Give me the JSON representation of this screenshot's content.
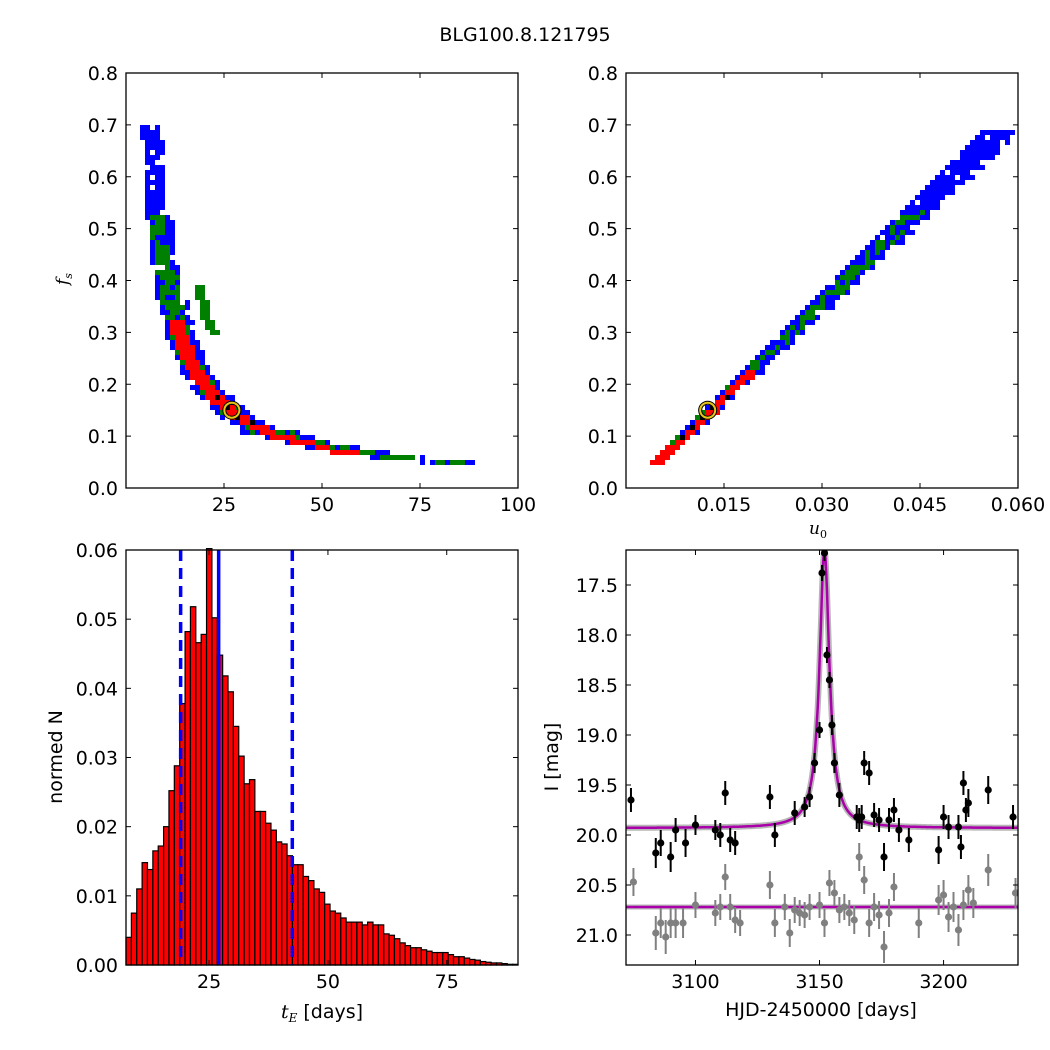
{
  "figure": {
    "title": "BLG100.8.121795"
  },
  "chart_data": [
    {
      "type": "heatmap",
      "panel": "fs_vs_tE",
      "xlabel": "",
      "ylabel": "f_s",
      "xlim": [
        0,
        100
      ],
      "ylim": [
        0.0,
        0.8
      ],
      "xticks": [
        25,
        50,
        75,
        100
      ],
      "yticks": [
        0.0,
        0.1,
        0.2,
        0.3,
        0.4,
        0.5,
        0.6,
        0.7,
        0.8
      ],
      "colors": {
        "outer": "#0000ff",
        "middle": "#008000",
        "inner": "#ff0000",
        "best": "#000000"
      },
      "best_fit": {
        "tE": 27.0,
        "fs": 0.15
      },
      "relation": "fs ≈ 4.05 / tE (degenerate band from tE≈10, fs≈0.7 to tE≈90, fs≈0.05)"
    },
    {
      "type": "heatmap",
      "panel": "fs_vs_u0",
      "xlabel": "u_0",
      "ylabel": "",
      "xlim": [
        0.0,
        0.06
      ],
      "ylim": [
        0.0,
        0.8
      ],
      "xticks": [
        0.015,
        0.03,
        0.045,
        0.06
      ],
      "xtick_labels": [
        "0.015",
        "0.030",
        "0.045",
        "0.060"
      ],
      "yticks": [
        0.0,
        0.1,
        0.2,
        0.3,
        0.4,
        0.5,
        0.6,
        0.7,
        0.8
      ],
      "colors": {
        "outer": "#0000ff",
        "middle": "#008000",
        "inner": "#ff0000",
        "best": "#000000"
      },
      "best_fit": {
        "u0": 0.0125,
        "fs": 0.15
      },
      "relation": "fs ≈ 12.1·u0 (band from u0≈0.004, fs≈0.05 to u0≈0.056, fs≈0.69)"
    },
    {
      "type": "bar",
      "panel": "tE_histogram",
      "xlabel": "t_E [days]",
      "ylabel": "normed N",
      "xlim": [
        7.5,
        90
      ],
      "ylim": [
        0.0,
        0.06
      ],
      "xticks": [
        25,
        50,
        75
      ],
      "yticks": [
        0.0,
        0.01,
        0.02,
        0.03,
        0.04,
        0.05,
        0.06
      ],
      "ytick_labels": [
        "0.00",
        "0.01",
        "0.02",
        "0.03",
        "0.04",
        "0.05",
        "0.06"
      ],
      "bar_color": "#ff0000",
      "bin_start": 7.5,
      "bin_width": 1.13,
      "values": [
        0.004,
        0.0075,
        0.011,
        0.0148,
        0.0138,
        0.0165,
        0.0172,
        0.02,
        0.0252,
        0.0288,
        0.0378,
        0.0482,
        0.0518,
        0.0466,
        0.0478,
        0.0602,
        0.0502,
        0.0448,
        0.0418,
        0.0395,
        0.0345,
        0.0302,
        0.0262,
        0.0268,
        0.0222,
        0.0222,
        0.0205,
        0.0195,
        0.0178,
        0.0175,
        0.0158,
        0.0145,
        0.0145,
        0.0128,
        0.0122,
        0.011,
        0.0105,
        0.0088,
        0.0078,
        0.0075,
        0.0068,
        0.0062,
        0.0062,
        0.0062,
        0.0058,
        0.0062,
        0.0058,
        0.0058,
        0.0045,
        0.0043,
        0.0038,
        0.0032,
        0.0028,
        0.0025,
        0.0025,
        0.0022,
        0.002,
        0.0018,
        0.0018,
        0.0018,
        0.0015,
        0.0012,
        0.0012,
        0.001,
        0.0008,
        0.0007,
        0.0005,
        0.0004,
        0.0003,
        0.0003,
        0.0002,
        0.0001,
        0.0001
      ],
      "median_line": 27.0,
      "dashed_lines": [
        19.0,
        42.5
      ],
      "line_color": "#0000ff"
    },
    {
      "type": "scatter",
      "panel": "light_curve",
      "xlabel": "HJD-2450000 [days]",
      "ylabel": "I [mag]",
      "xlim": [
        3072,
        3230
      ],
      "ylim": [
        21.3,
        17.15
      ],
      "y_inverted": true,
      "xticks": [
        3100,
        3150,
        3200
      ],
      "yticks": [
        17.5,
        18.0,
        18.5,
        19.0,
        19.5,
        20.0,
        20.5,
        21.0
      ],
      "model": {
        "t0": 3152.0,
        "baseline": 19.93,
        "peak": 17.15,
        "width": 2.4,
        "color": "#aa00aa",
        "band_color": "#999999"
      },
      "flat_model": {
        "level": 20.72,
        "color": "#aa00aa"
      },
      "series": [
        {
          "color": "#000000",
          "x": [
            3074,
            3084,
            3086,
            3090,
            3092,
            3096,
            3100,
            3108,
            3110,
            3112,
            3114,
            3116,
            3130,
            3132,
            3140,
            3144,
            3146,
            3148,
            3150,
            3151,
            3152,
            3153,
            3154,
            3155,
            3156,
            3158,
            3165,
            3166,
            3167,
            3168,
            3170,
            3172,
            3174,
            3176,
            3178,
            3180,
            3182,
            3186,
            3198,
            3200,
            3202,
            3206,
            3207,
            3208,
            3209,
            3210,
            3218,
            3228
          ],
          "y": [
            19.65,
            20.18,
            20.08,
            20.22,
            19.95,
            20.08,
            19.9,
            19.95,
            20.0,
            19.58,
            20.05,
            20.08,
            19.62,
            20.0,
            19.78,
            19.72,
            19.62,
            19.28,
            18.95,
            17.38,
            17.18,
            18.2,
            18.45,
            18.9,
            19.28,
            19.6,
            19.82,
            19.85,
            19.82,
            19.28,
            19.38,
            19.8,
            19.85,
            20.22,
            19.85,
            19.75,
            19.95,
            20.05,
            20.15,
            19.82,
            19.92,
            19.92,
            20.12,
            19.48,
            19.75,
            19.68,
            19.55,
            19.82
          ],
          "err": [
            0.12,
            0.15,
            0.13,
            0.15,
            0.12,
            0.14,
            0.1,
            0.1,
            0.12,
            0.12,
            0.12,
            0.12,
            0.12,
            0.12,
            0.12,
            0.1,
            0.1,
            0.1,
            0.08,
            0.08,
            0.08,
            0.08,
            0.08,
            0.1,
            0.1,
            0.12,
            0.12,
            0.12,
            0.12,
            0.12,
            0.12,
            0.12,
            0.12,
            0.14,
            0.12,
            0.12,
            0.12,
            0.12,
            0.14,
            0.12,
            0.12,
            0.12,
            0.12,
            0.12,
            0.12,
            0.14,
            0.14,
            0.12
          ]
        },
        {
          "color": "#808080",
          "x": [
            3075,
            3084,
            3086,
            3088,
            3090,
            3092,
            3095,
            3100,
            3108,
            3110,
            3112,
            3114,
            3116,
            3118,
            3130,
            3132,
            3136,
            3138,
            3140,
            3142,
            3144,
            3146,
            3150,
            3152,
            3154,
            3156,
            3158,
            3160,
            3162,
            3164,
            3166,
            3168,
            3170,
            3172,
            3174,
            3176,
            3178,
            3180,
            3190,
            3198,
            3200,
            3202,
            3204,
            3206,
            3208,
            3210,
            3212,
            3218,
            3229
          ],
          "y": [
            20.47,
            20.98,
            20.88,
            21.02,
            20.88,
            20.88,
            20.88,
            20.7,
            20.78,
            20.72,
            20.42,
            20.72,
            20.85,
            20.88,
            20.5,
            20.88,
            20.72,
            20.98,
            20.75,
            20.78,
            20.8,
            20.72,
            20.7,
            20.88,
            20.48,
            20.58,
            20.75,
            20.72,
            20.78,
            20.85,
            20.22,
            20.45,
            20.88,
            20.72,
            20.8,
            21.12,
            20.78,
            20.52,
            20.88,
            20.65,
            20.6,
            20.82,
            20.72,
            20.95,
            20.7,
            20.55,
            20.68,
            20.35,
            20.58
          ],
          "err": [
            0.14,
            0.17,
            0.15,
            0.17,
            0.15,
            0.15,
            0.15,
            0.13,
            0.13,
            0.13,
            0.13,
            0.13,
            0.13,
            0.13,
            0.14,
            0.14,
            0.13,
            0.14,
            0.13,
            0.13,
            0.13,
            0.13,
            0.13,
            0.14,
            0.13,
            0.13,
            0.13,
            0.13,
            0.13,
            0.14,
            0.14,
            0.14,
            0.14,
            0.14,
            0.14,
            0.16,
            0.14,
            0.14,
            0.15,
            0.15,
            0.15,
            0.15,
            0.15,
            0.16,
            0.15,
            0.15,
            0.15,
            0.16,
            0.15
          ]
        }
      ]
    }
  ]
}
